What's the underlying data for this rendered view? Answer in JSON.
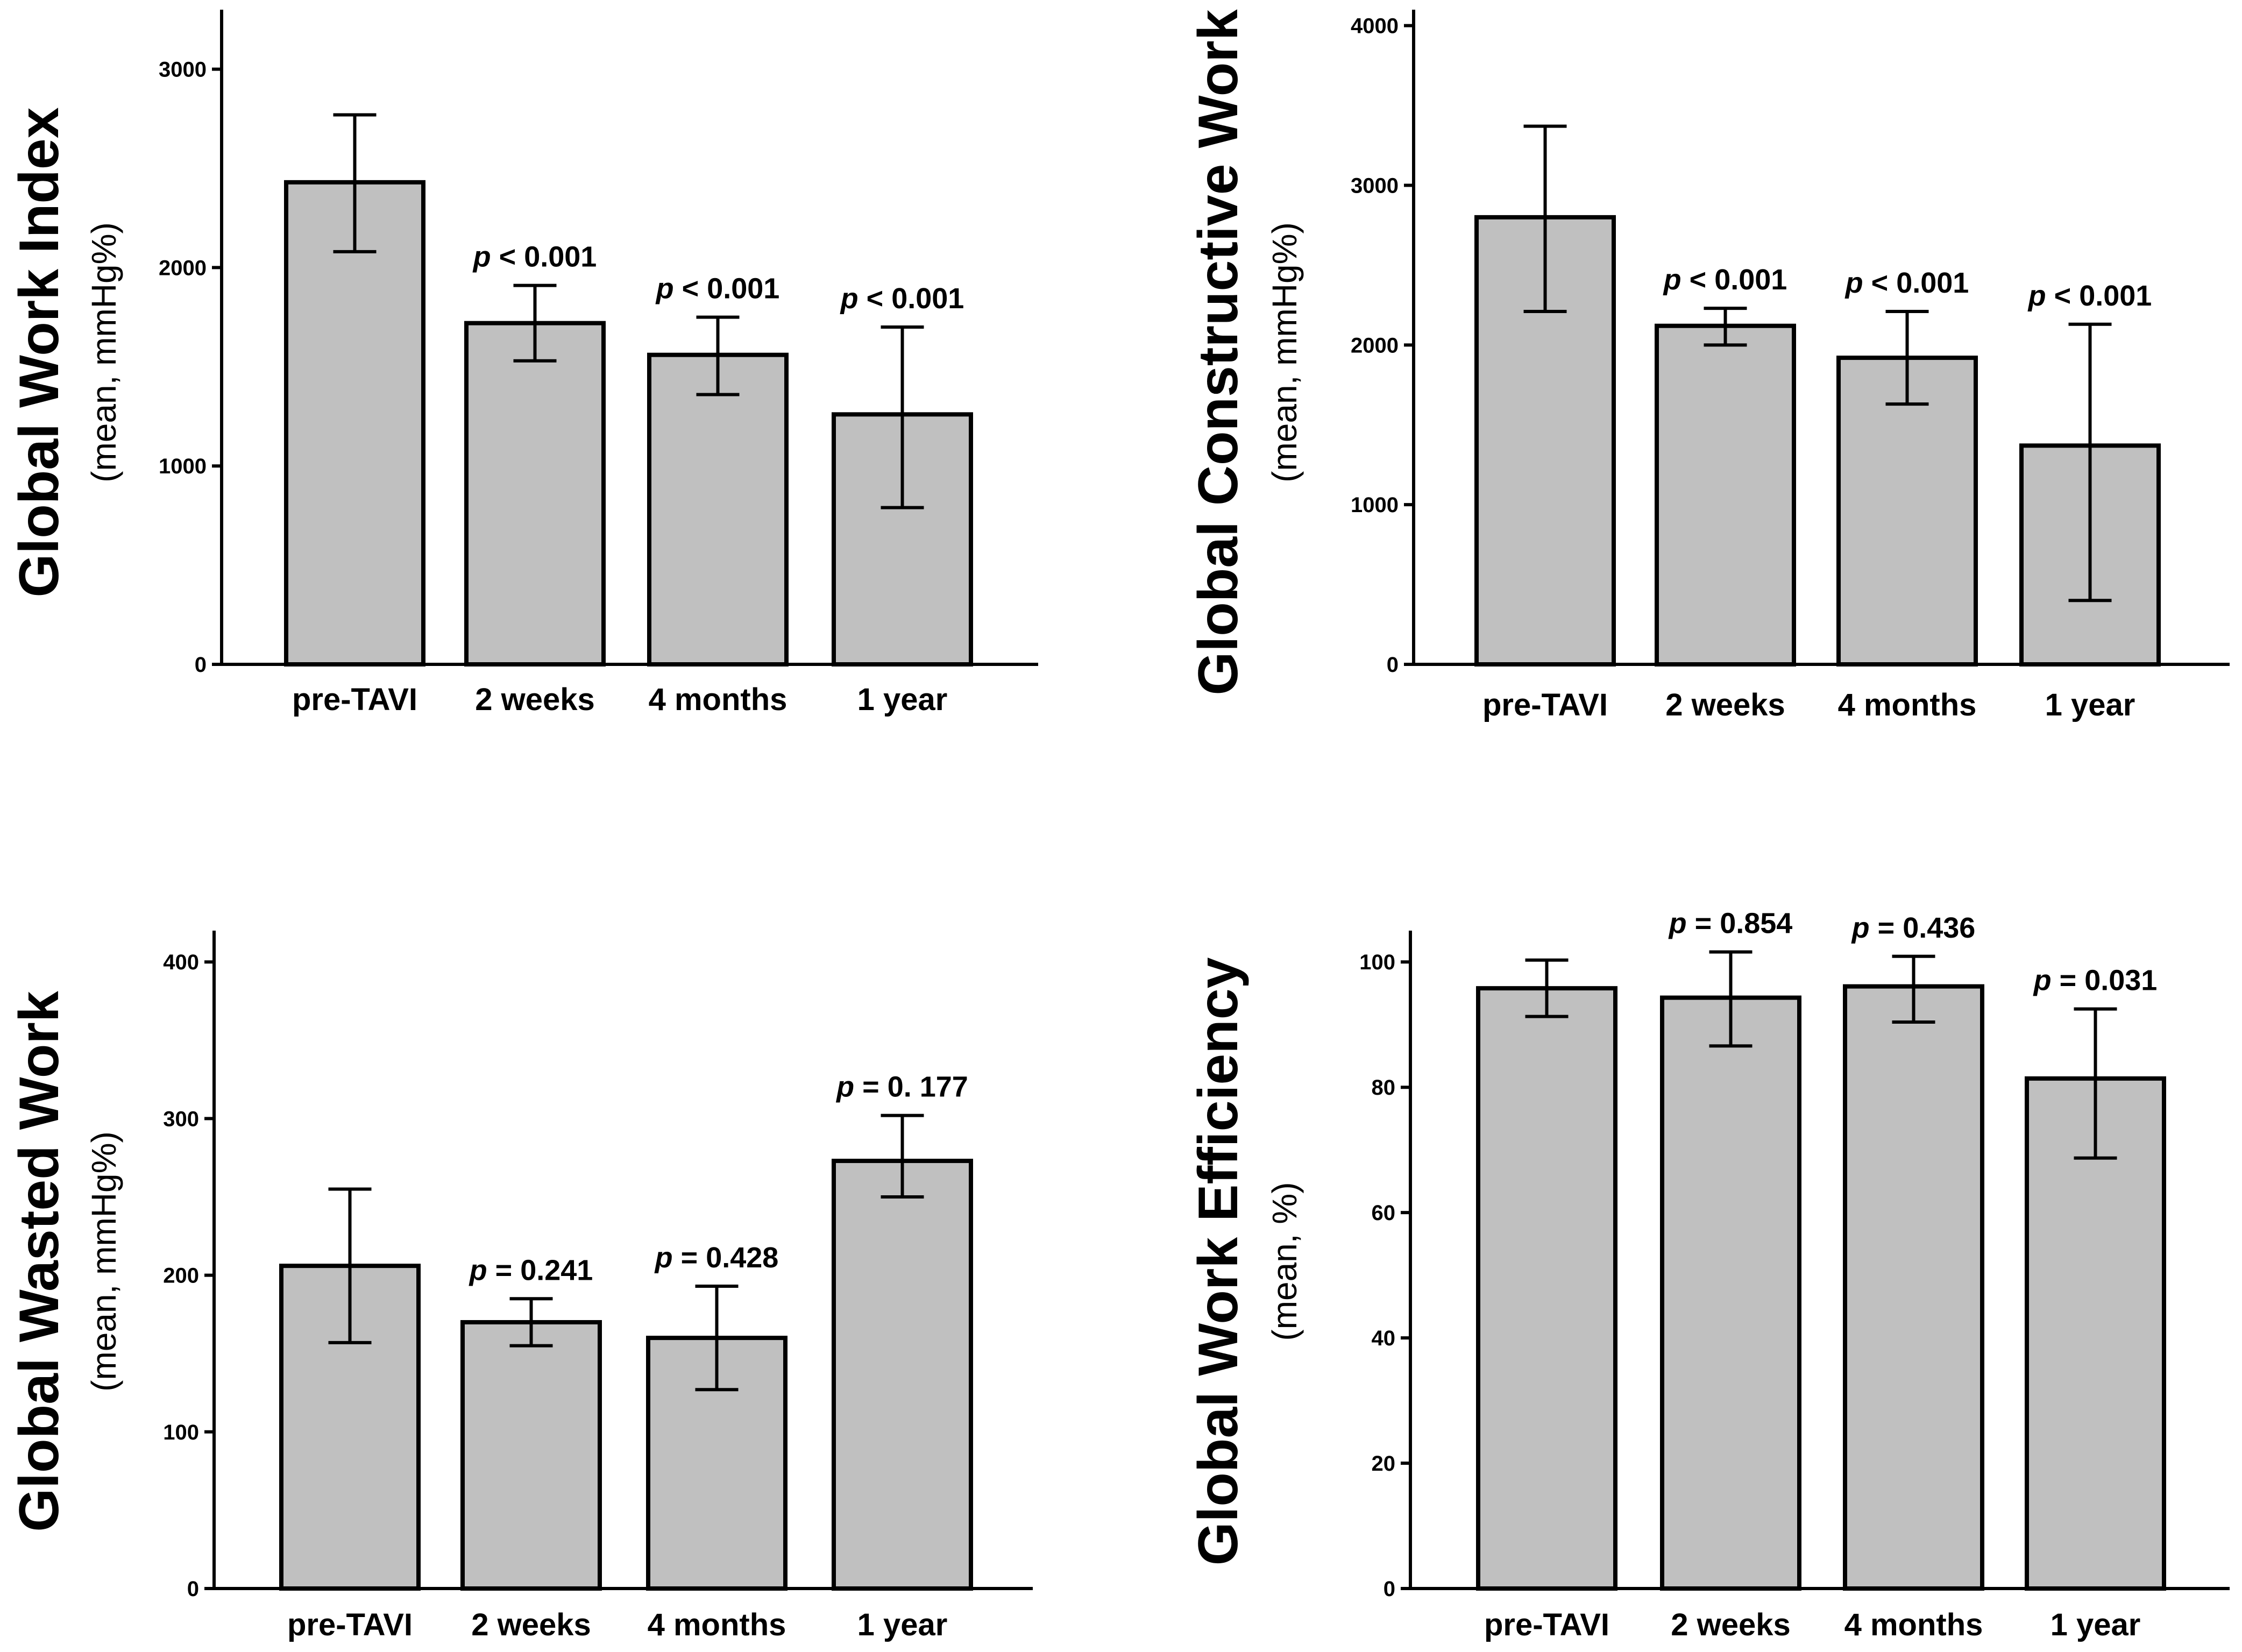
{
  "chart_data": [
    {
      "type": "bar",
      "ylabel": "Global Work Index",
      "ysublabel": "(mean, mmHg%)",
      "categories": [
        "pre-TAVI",
        "2 weeks",
        "4 months",
        "1 year"
      ],
      "values": [
        2430,
        1720,
        1560,
        1260
      ],
      "error_low": [
        2080,
        1530,
        1360,
        790
      ],
      "error_high": [
        2770,
        1910,
        1750,
        1700
      ],
      "p_labels": [
        "",
        "p < 0.001",
        "p < 0.001",
        "p < 0.001"
      ],
      "yticks": [
        0,
        1000,
        2000,
        3000
      ],
      "ylim": [
        0,
        3300
      ]
    },
    {
      "type": "bar",
      "ylabel": "Global Constructive Work",
      "ysublabel": "(mean, mmHg%)",
      "categories": [
        "pre-TAVI",
        "2 weeks",
        "4 months",
        "1 year"
      ],
      "values": [
        2800,
        2120,
        1920,
        1370
      ],
      "error_low": [
        2210,
        2000,
        1630,
        400
      ],
      "error_high": [
        3370,
        2230,
        2210,
        2130
      ],
      "p_labels": [
        "",
        "p < 0.001",
        "p < 0.001",
        "p < 0.001"
      ],
      "yticks": [
        0,
        1000,
        2000,
        3000,
        4000
      ],
      "ylim": [
        0,
        4100
      ]
    },
    {
      "type": "bar",
      "ylabel": "Global Wasted Work",
      "ysublabel": "(mean, mmHg%)",
      "categories": [
        "pre-TAVI",
        "2 weeks",
        "4 months",
        "1 year"
      ],
      "values": [
        206,
        170,
        160,
        273
      ],
      "error_low": [
        157,
        155,
        127,
        250
      ],
      "error_high": [
        255,
        185,
        193,
        302
      ],
      "p_labels": [
        "",
        "p = 0.241",
        "p = 0.428",
        "p = 0. 177"
      ],
      "yticks": [
        0,
        100,
        200,
        300,
        400
      ],
      "ylim": [
        0,
        420
      ]
    },
    {
      "type": "bar",
      "ylabel": "Global Work Efficiency",
      "ysublabel": "(mean, %)",
      "categories": [
        "pre-TAVI",
        "2 weeks",
        "4 months",
        "1 year"
      ],
      "values": [
        95.8,
        94.3,
        96.1,
        81.4
      ],
      "error_low": [
        91.3,
        86.6,
        90.4,
        68.7
      ],
      "error_high": [
        100.3,
        101.6,
        100.9,
        92.5
      ],
      "p_labels": [
        "",
        "p = 0.854",
        "p = 0.436",
        "p = 0.031"
      ],
      "yticks": [
        0,
        20,
        40,
        60,
        80,
        100
      ],
      "ylim": [
        0,
        105
      ]
    }
  ]
}
